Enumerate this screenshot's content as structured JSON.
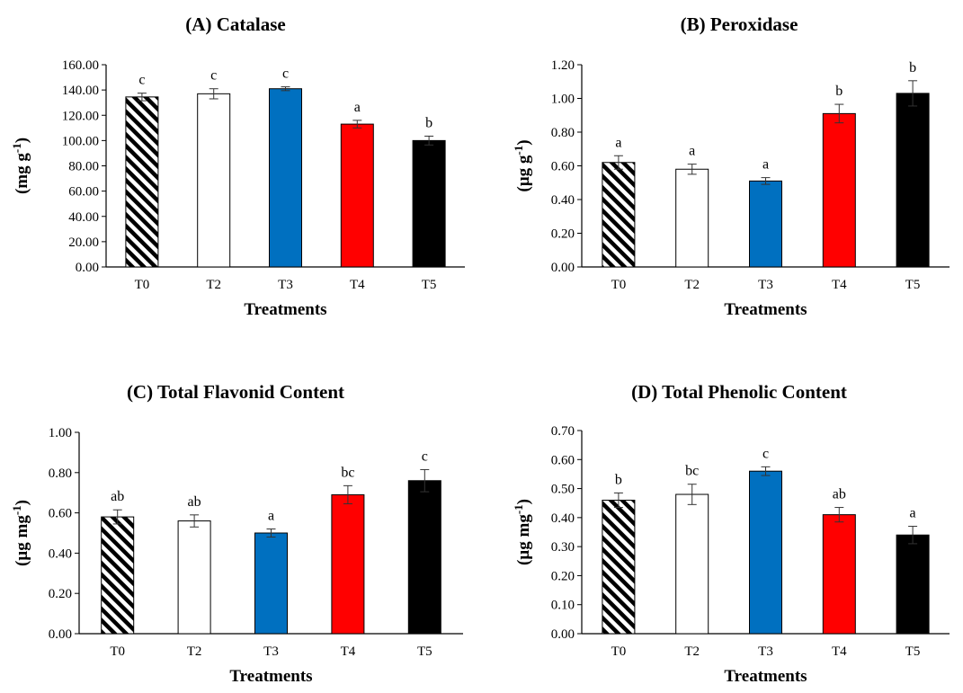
{
  "chart_data": [
    {
      "type": "bar",
      "title": "(A) Catalase",
      "xlabel": "Treatments",
      "ylabel": "(mg g",
      "ylabel_sup": "-1",
      "ylabel_close": ")",
      "categories": [
        "T0",
        "T2",
        "T3",
        "T4",
        "T5"
      ],
      "values": [
        134.5,
        137.0,
        141.0,
        113.0,
        100.0
      ],
      "errors": [
        3.0,
        4.0,
        1.5,
        3.0,
        3.5
      ],
      "letters": [
        "c",
        "c",
        "c",
        "a",
        "b"
      ],
      "ylim": [
        0,
        160
      ],
      "yticks": [
        "0.00",
        "20.00",
        "40.00",
        "60.00",
        "80.00",
        "100.00",
        "120.00",
        "140.00",
        "160.00"
      ]
    },
    {
      "type": "bar",
      "title": "(B) Peroxidase",
      "xlabel": "Treatments",
      "ylabel": "(µg g",
      "ylabel_sup": "-1",
      "ylabel_close": ")",
      "categories": [
        "T0",
        "T2",
        "T3",
        "T4",
        "T5"
      ],
      "values": [
        0.62,
        0.58,
        0.51,
        0.91,
        1.03
      ],
      "errors": [
        0.04,
        0.03,
        0.02,
        0.055,
        0.075
      ],
      "letters": [
        "a",
        "a",
        "a",
        "b",
        "b"
      ],
      "ylim": [
        0,
        1.2
      ],
      "yticks": [
        "0.00",
        "0.20",
        "0.40",
        "0.60",
        "0.80",
        "1.00",
        "1.20"
      ]
    },
    {
      "type": "bar",
      "title": "(C) Total Flavonid Content",
      "xlabel": "Treatments",
      "ylabel": "(µg mg",
      "ylabel_sup": "-1",
      "ylabel_close": ")",
      "categories": [
        "T0",
        "T2",
        "T3",
        "T4",
        "T5"
      ],
      "values": [
        0.58,
        0.56,
        0.5,
        0.69,
        0.76
      ],
      "errors": [
        0.035,
        0.03,
        0.02,
        0.045,
        0.055
      ],
      "letters": [
        "ab",
        "ab",
        "a",
        "bc",
        "c"
      ],
      "ylim": [
        0,
        1.0
      ],
      "yticks": [
        "0.00",
        "0.20",
        "0.40",
        "0.60",
        "0.80",
        "1.00"
      ]
    },
    {
      "type": "bar",
      "title": "(D) Total Phenolic Content",
      "xlabel": "Treatments",
      "ylabel": "(µg mg",
      "ylabel_sup": "-1",
      "ylabel_close": ")",
      "categories": [
        "T0",
        "T2",
        "T3",
        "T4",
        "T5"
      ],
      "values": [
        0.46,
        0.48,
        0.56,
        0.41,
        0.34
      ],
      "errors": [
        0.025,
        0.035,
        0.015,
        0.025,
        0.03
      ],
      "letters": [
        "b",
        "bc",
        "c",
        "ab",
        "a"
      ],
      "ylim": [
        0,
        0.7
      ],
      "yticks": [
        "0.00",
        "0.10",
        "0.20",
        "0.30",
        "0.40",
        "0.50",
        "0.60",
        "0.70"
      ]
    }
  ],
  "bar_styles": [
    "hatched",
    "white",
    "#0070C0",
    "#FF0000",
    "#000000"
  ]
}
